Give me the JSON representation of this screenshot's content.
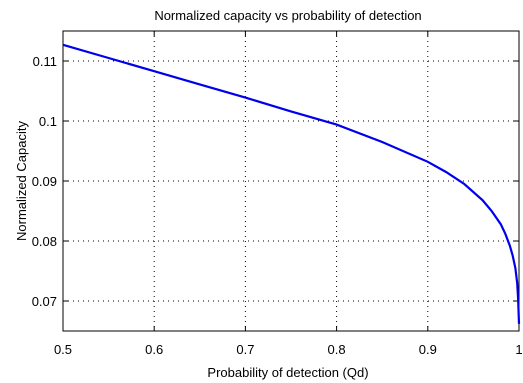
{
  "chart_data": {
    "type": "line",
    "title": "Normalized capacity vs probability of detection",
    "xlabel": "Probability of detection (Qd)",
    "ylabel": "Normalized Capacity",
    "xlim": [
      0.5,
      1.0
    ],
    "ylim": [
      0.065,
      0.115
    ],
    "xticks": [
      "0.5",
      "0.6",
      "0.7",
      "0.8",
      "0.9",
      "1"
    ],
    "yticks": [
      "0.07",
      "0.08",
      "0.09",
      "0.1",
      "0.11"
    ],
    "grid": true,
    "color": "#0000ee",
    "series": [
      {
        "x": [
          0.5,
          0.55,
          0.6,
          0.65,
          0.7,
          0.75,
          0.8,
          0.85,
          0.9,
          0.92,
          0.94,
          0.96,
          0.97,
          0.98,
          0.985,
          0.99,
          0.993,
          0.996,
          0.998,
          0.999,
          1.0
        ],
        "y": [
          0.1127,
          0.1105,
          0.1083,
          0.1061,
          0.1039,
          0.1016,
          0.0994,
          0.0965,
          0.0932,
          0.0915,
          0.0895,
          0.0868,
          0.085,
          0.0828,
          0.0812,
          0.0792,
          0.0776,
          0.0755,
          0.073,
          0.0705,
          0.0662
        ]
      }
    ]
  }
}
